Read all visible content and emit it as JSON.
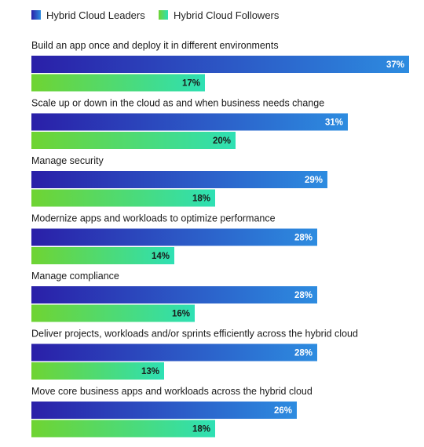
{
  "chart_data": {
    "type": "bar",
    "orientation": "horizontal",
    "legend": {
      "placement": "top-left",
      "entries": [
        "Hybrid Cloud Leaders",
        "Hybrid Cloud Followers"
      ]
    },
    "categories": [
      "Build an app once and deploy it in different environments",
      "Scale up or down in the cloud as and when business needs change",
      "Manage security",
      "Modernize apps and workloads to optimize performance",
      "Manage compliance",
      "Deliver projects, workloads and/or sprints efficiently across the hybrid cloud",
      "Move core business apps and workloads across the hybrid cloud"
    ],
    "series": [
      {
        "name": "Hybrid Cloud Leaders",
        "values": [
          37,
          31,
          29,
          28,
          28,
          28,
          26
        ],
        "labels": [
          "37%",
          "31%",
          "29%",
          "28%",
          "28%",
          "28%",
          "26%"
        ],
        "gradient": [
          "#2a1fa8",
          "#2d8ce0"
        ]
      },
      {
        "name": "Hybrid Cloud Followers",
        "values": [
          17,
          20,
          18,
          14,
          16,
          13,
          18
        ],
        "labels": [
          "17%",
          "20%",
          "18%",
          "14%",
          "16%",
          "13%",
          "18%"
        ],
        "gradient": [
          "#6fd432",
          "#2ee0b4"
        ]
      }
    ],
    "xlim": [
      0,
      37
    ],
    "grid": false,
    "value_label_color": {
      "Hybrid Cloud Leaders": "#ffffff",
      "Hybrid Cloud Followers": "#1a1a1a"
    }
  }
}
